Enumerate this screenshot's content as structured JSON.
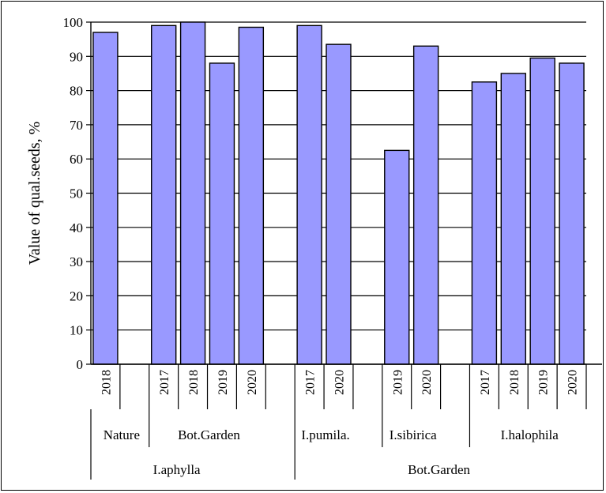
{
  "chart_data": {
    "type": "bar",
    "ylabel": "Value of qual.seeds, %",
    "ylim": [
      0,
      100
    ],
    "yticks": [
      0,
      10,
      20,
      30,
      40,
      50,
      60,
      70,
      80,
      90,
      100
    ],
    "grid": true,
    "bar_color": "#9999ff",
    "categories": [
      "2018",
      "",
      "2017",
      "2018",
      "2019",
      "2020",
      "",
      "2017",
      "2020",
      "",
      "2019",
      "2020",
      "",
      "2017",
      "2018",
      "2019",
      "2020"
    ],
    "values": [
      97,
      null,
      99,
      100,
      88,
      98.5,
      null,
      99,
      93.5,
      null,
      62.5,
      93,
      null,
      82.5,
      85,
      89.5,
      88
    ],
    "groups": [
      {
        "label": "Nature",
        "start": 0,
        "end": 1
      },
      {
        "label": "Bot.Garden",
        "start": 2,
        "end": 5
      },
      {
        "label": "I.pumila.",
        "start": 7,
        "end": 8
      },
      {
        "label": "I.sibirica",
        "start": 10,
        "end": 11
      },
      {
        "label": "I.halophila",
        "start": 13,
        "end": 16
      }
    ],
    "supergroups": [
      {
        "label": "I.aphylla",
        "start": 0,
        "end": 5
      },
      {
        "label": "Bot.Garden",
        "start": 7,
        "end": 16
      }
    ]
  }
}
